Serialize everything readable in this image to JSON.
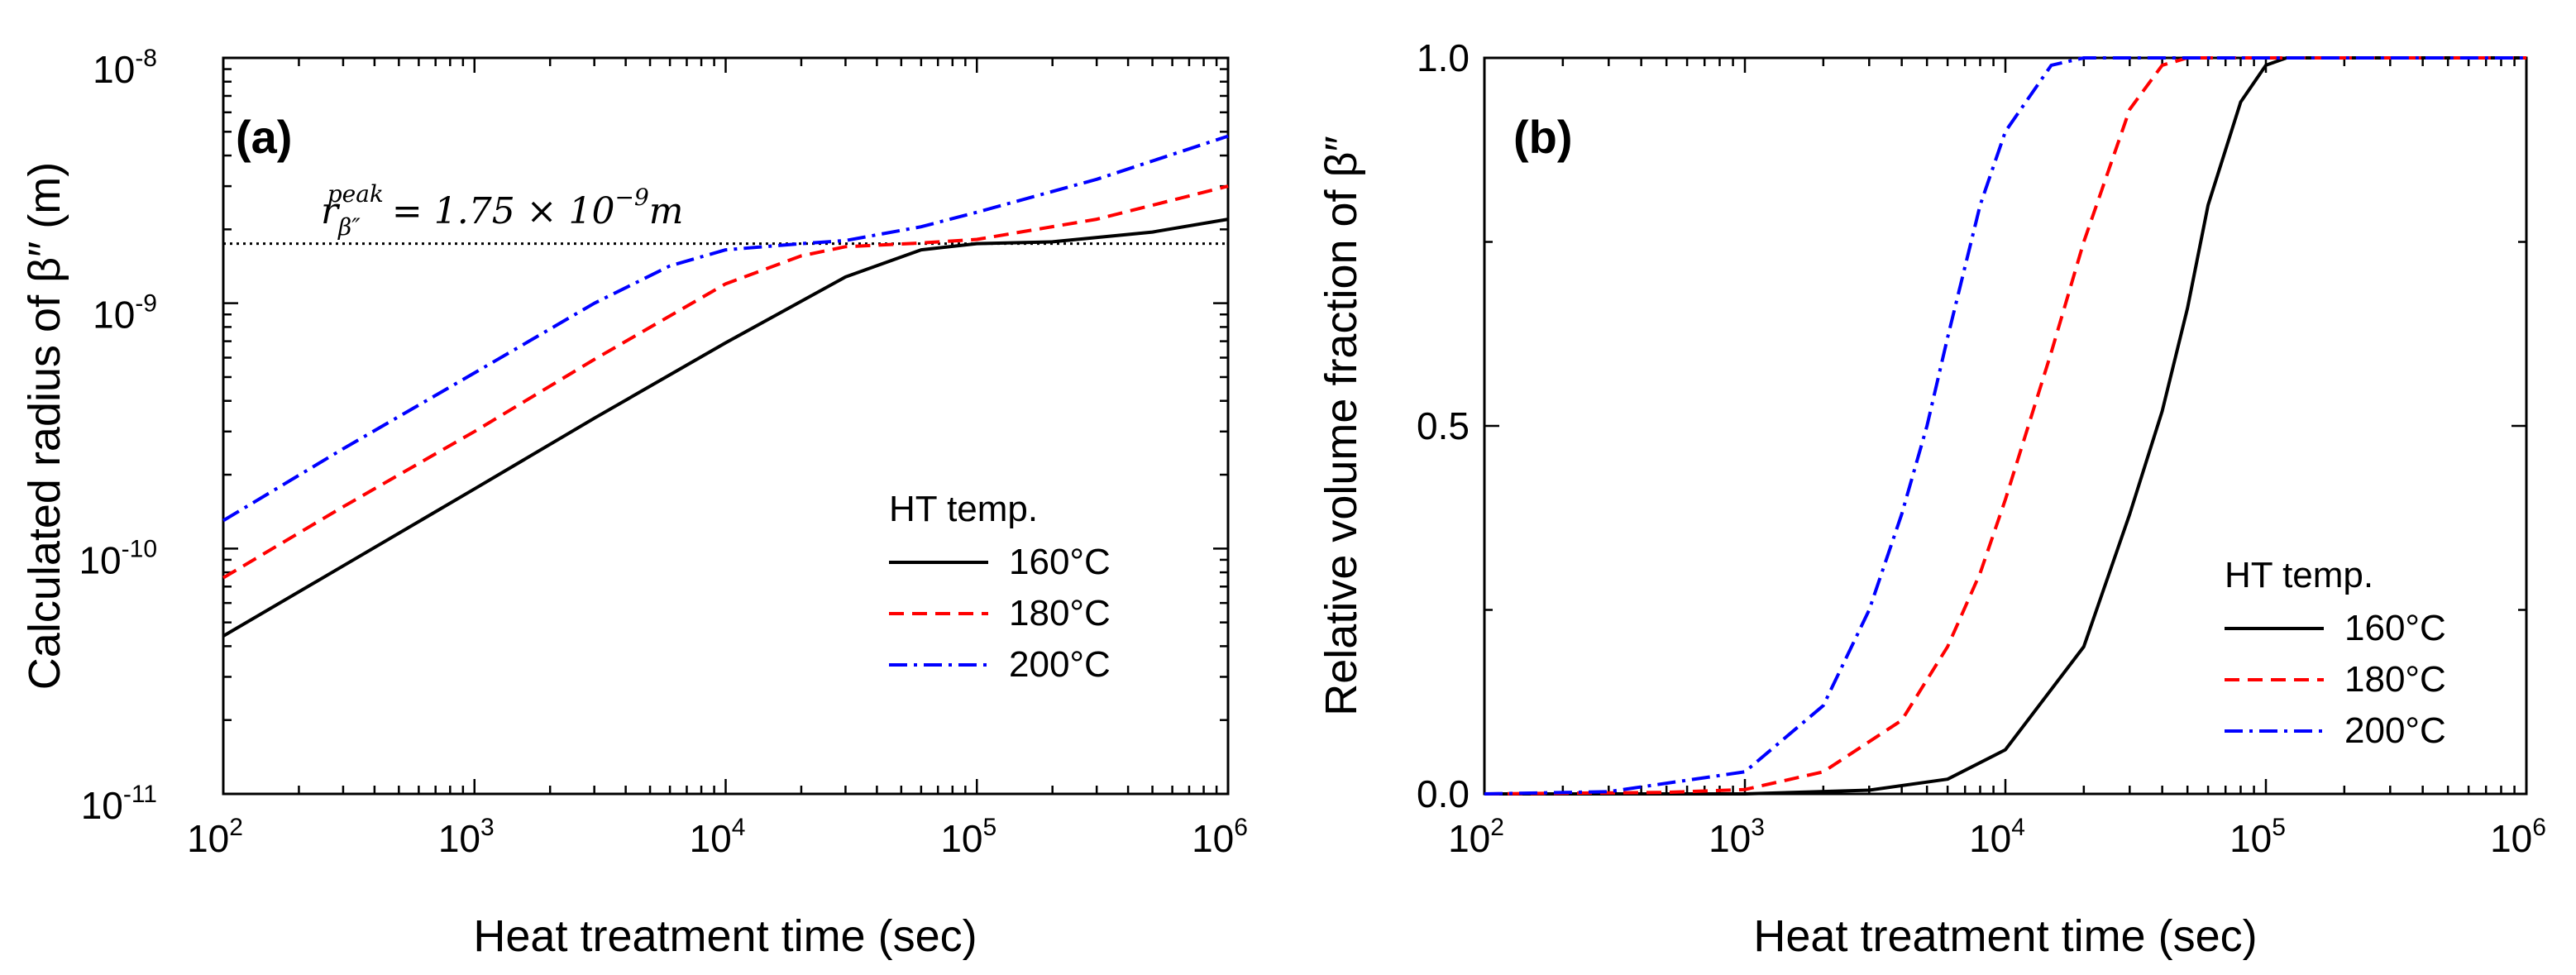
{
  "colors": {
    "s160": "#000000",
    "s180": "#ff0000",
    "s200": "#0000ff",
    "peak_line": "#000000"
  },
  "chart_data": [
    {
      "type": "line",
      "panel_label": "(a)",
      "xlabel": "Heat treatment time (sec)",
      "ylabel": "Calculated radius of β″ (m)",
      "x_scale": "log",
      "y_scale": "log",
      "xlim": [
        100,
        1000000
      ],
      "ylim": [
        1e-11,
        1e-08
      ],
      "x_ticks": [
        {
          "value": 100,
          "base": "10",
          "exp": "2"
        },
        {
          "value": 1000,
          "base": "10",
          "exp": "3"
        },
        {
          "value": 10000,
          "base": "10",
          "exp": "4"
        },
        {
          "value": 100000,
          "base": "10",
          "exp": "5"
        },
        {
          "value": 1000000,
          "base": "10",
          "exp": "6"
        }
      ],
      "y_ticks": [
        {
          "value": 1e-11,
          "base": "10",
          "exp": "-11"
        },
        {
          "value": 1e-10,
          "base": "10",
          "exp": "-10"
        },
        {
          "value": 1e-09,
          "base": "10",
          "exp": "-9"
        },
        {
          "value": 1e-08,
          "base": "10",
          "exp": "-8"
        }
      ],
      "annotation": {
        "r": "r",
        "sub": "β″",
        "sup": "peak",
        "rest": "= 1.75 × 10",
        "exp": "−9",
        "unit": "m",
        "value": 1.75e-09
      },
      "legend": {
        "title": "HT temp.",
        "placement": "lower-right"
      },
      "series": [
        {
          "name": "160°C",
          "style": "solid",
          "color_key": "s160",
          "x": [
            100,
            300,
            1000,
            3000,
            10000,
            30000,
            60000,
            100000,
            200000,
            500000,
            1000000
          ],
          "y": [
            4.4e-11,
            8.5e-11,
            1.75e-10,
            3.4e-10,
            6.9e-10,
            1.28e-09,
            1.65e-09,
            1.75e-09,
            1.78e-09,
            1.95e-09,
            2.2e-09
          ]
        },
        {
          "name": "180°C",
          "style": "dashed",
          "color_key": "s180",
          "x": [
            100,
            300,
            1000,
            3000,
            10000,
            20000,
            30000,
            60000,
            100000,
            300000,
            1000000
          ],
          "y": [
            7.6e-11,
            1.48e-10,
            3e-10,
            5.9e-10,
            1.2e-09,
            1.56e-09,
            1.7e-09,
            1.76e-09,
            1.82e-09,
            2.2e-09,
            3e-09
          ]
        },
        {
          "name": "200°C",
          "style": "dashdot",
          "color_key": "s200",
          "x": [
            100,
            300,
            1000,
            3000,
            6000,
            10000,
            20000,
            30000,
            60000,
            100000,
            300000,
            1000000
          ],
          "y": [
            1.3e-10,
            2.55e-10,
            5.2e-10,
            1e-09,
            1.42e-09,
            1.65e-09,
            1.75e-09,
            1.8e-09,
            2.05e-09,
            2.35e-09,
            3.2e-09,
            4.8e-09
          ]
        }
      ]
    },
    {
      "type": "line",
      "panel_label": "(b)",
      "xlabel": "Heat treatment time (sec)",
      "ylabel": "Relative volume fraction of β″",
      "x_scale": "log",
      "y_scale": "linear",
      "xlim": [
        100,
        1000000
      ],
      "ylim": [
        0,
        1
      ],
      "x_ticks": [
        {
          "value": 100,
          "base": "10",
          "exp": "2"
        },
        {
          "value": 1000,
          "base": "10",
          "exp": "3"
        },
        {
          "value": 10000,
          "base": "10",
          "exp": "4"
        },
        {
          "value": 100000,
          "base": "10",
          "exp": "5"
        },
        {
          "value": 1000000,
          "base": "10",
          "exp": "6"
        }
      ],
      "y_ticks": [
        {
          "value": 0,
          "label": "0.0"
        },
        {
          "value": 0.5,
          "label": "0.5"
        },
        {
          "value": 1,
          "label": "1.0"
        }
      ],
      "legend": {
        "title": "HT temp.",
        "placement": "lower-right"
      },
      "series": [
        {
          "name": "160°C",
          "style": "solid",
          "color_key": "s160",
          "x": [
            100,
            1000,
            3000,
            6000,
            10000,
            20000,
            30000,
            40000,
            50000,
            60000,
            80000,
            100000,
            120000,
            1000000
          ],
          "y": [
            0,
            0.0,
            0.005,
            0.02,
            0.06,
            0.2,
            0.38,
            0.52,
            0.66,
            0.8,
            0.94,
            0.99,
            1.0,
            1.0
          ]
        },
        {
          "name": "180°C",
          "style": "dashed",
          "color_key": "s180",
          "x": [
            100,
            500,
            1000,
            2000,
            4000,
            6000,
            8000,
            10000,
            15000,
            20000,
            30000,
            40000,
            50000,
            1000000
          ],
          "y": [
            0,
            0.002,
            0.006,
            0.03,
            0.1,
            0.2,
            0.3,
            0.4,
            0.6,
            0.75,
            0.93,
            0.99,
            1.0,
            1.0
          ]
        },
        {
          "name": "200°C",
          "style": "dashdot",
          "color_key": "s200",
          "x": [
            100,
            300,
            1000,
            2000,
            3000,
            4000,
            5000,
            6000,
            8000,
            10000,
            15000,
            20000,
            1000000
          ],
          "y": [
            0,
            0.003,
            0.03,
            0.12,
            0.25,
            0.38,
            0.5,
            0.62,
            0.8,
            0.9,
            0.99,
            1.0,
            1.0
          ]
        }
      ]
    }
  ]
}
